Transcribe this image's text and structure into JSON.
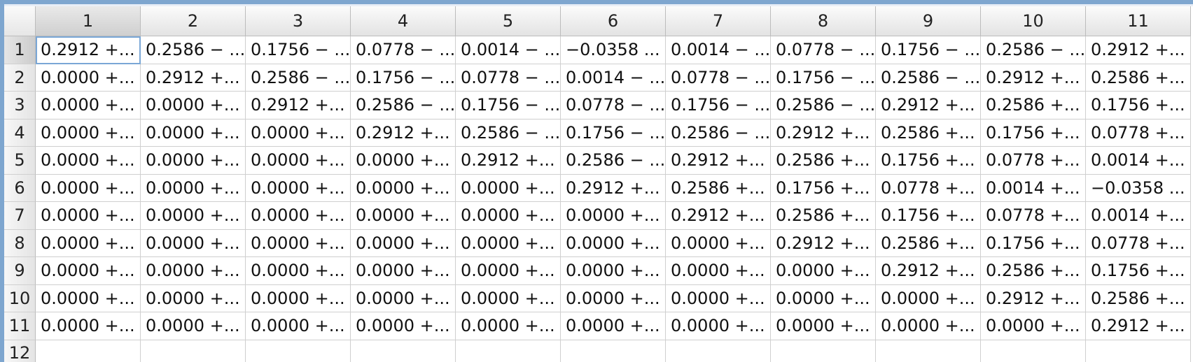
{
  "columns": [
    "1",
    "2",
    "3",
    "4",
    "5",
    "6",
    "7",
    "8",
    "9",
    "10",
    "11"
  ],
  "partial_row_label": "12",
  "rows": [
    {
      "label": "1",
      "cells": [
        "0.2912 +...",
        "0.2586 − ...",
        "0.1756 − ...",
        "0.0778 − ...",
        "0.0014 − ...",
        "−0.0358 ...",
        "0.0014 − ...",
        "0.0778 − ...",
        "0.1756 − ...",
        "0.2586 − ...",
        "0.2912 +..."
      ]
    },
    {
      "label": "2",
      "cells": [
        "0.0000 +...",
        "0.2912 +...",
        "0.2586 − ...",
        "0.1756 − ...",
        "0.0778 − ...",
        "0.0014 − ...",
        "0.0778 − ...",
        "0.1756 − ...",
        "0.2586 − ...",
        "0.2912 +...",
        "0.2586 +..."
      ]
    },
    {
      "label": "3",
      "cells": [
        "0.0000 +...",
        "0.0000 +...",
        "0.2912 +...",
        "0.2586 − ...",
        "0.1756 − ...",
        "0.0778 − ...",
        "0.1756 − ...",
        "0.2586 − ...",
        "0.2912 +...",
        "0.2586 +...",
        "0.1756 +..."
      ]
    },
    {
      "label": "4",
      "cells": [
        "0.0000 +...",
        "0.0000 +...",
        "0.0000 +...",
        "0.2912 +...",
        "0.2586 − ...",
        "0.1756 − ...",
        "0.2586 − ...",
        "0.2912 +...",
        "0.2586 +...",
        "0.1756 +...",
        "0.0778 +..."
      ]
    },
    {
      "label": "5",
      "cells": [
        "0.0000 +...",
        "0.0000 +...",
        "0.0000 +...",
        "0.0000 +...",
        "0.2912 +...",
        "0.2586 − ...",
        "0.2912 +...",
        "0.2586 +...",
        "0.1756 +...",
        "0.0778 +...",
        "0.0014 +..."
      ]
    },
    {
      "label": "6",
      "cells": [
        "0.0000 +...",
        "0.0000 +...",
        "0.0000 +...",
        "0.0000 +...",
        "0.0000 +...",
        "0.2912 +...",
        "0.2586 +...",
        "0.1756 +...",
        "0.0778 +...",
        "0.0014 +...",
        "−0.0358 ..."
      ]
    },
    {
      "label": "7",
      "cells": [
        "0.0000 +...",
        "0.0000 +...",
        "0.0000 +...",
        "0.0000 +...",
        "0.0000 +...",
        "0.0000 +...",
        "0.2912 +...",
        "0.2586 +...",
        "0.1756 +...",
        "0.0778 +...",
        "0.0014 +..."
      ]
    },
    {
      "label": "8",
      "cells": [
        "0.0000 +...",
        "0.0000 +...",
        "0.0000 +...",
        "0.0000 +...",
        "0.0000 +...",
        "0.0000 +...",
        "0.0000 +...",
        "0.2912 +...",
        "0.2586 +...",
        "0.1756 +...",
        "0.0778 +..."
      ]
    },
    {
      "label": "9",
      "cells": [
        "0.0000 +...",
        "0.0000 +...",
        "0.0000 +...",
        "0.0000 +...",
        "0.0000 +...",
        "0.0000 +...",
        "0.0000 +...",
        "0.0000 +...",
        "0.2912 +...",
        "0.2586 +...",
        "0.1756 +..."
      ]
    },
    {
      "label": "10",
      "cells": [
        "0.0000 +...",
        "0.0000 +...",
        "0.0000 +...",
        "0.0000 +...",
        "0.0000 +...",
        "0.0000 +...",
        "0.0000 +...",
        "0.0000 +...",
        "0.0000 +...",
        "0.2912 +...",
        "0.2586 +..."
      ]
    },
    {
      "label": "11",
      "cells": [
        "0.0000 +...",
        "0.0000 +...",
        "0.0000 +...",
        "0.0000 +...",
        "0.0000 +...",
        "0.0000 +...",
        "0.0000 +...",
        "0.0000 +...",
        "0.0000 +...",
        "0.0000 +...",
        "0.2912 +..."
      ]
    }
  ],
  "selection": {
    "row": 1,
    "col": 1
  },
  "colors": {
    "selection_outline": "#7aa7d6",
    "window_border": "#7ea6cf"
  }
}
